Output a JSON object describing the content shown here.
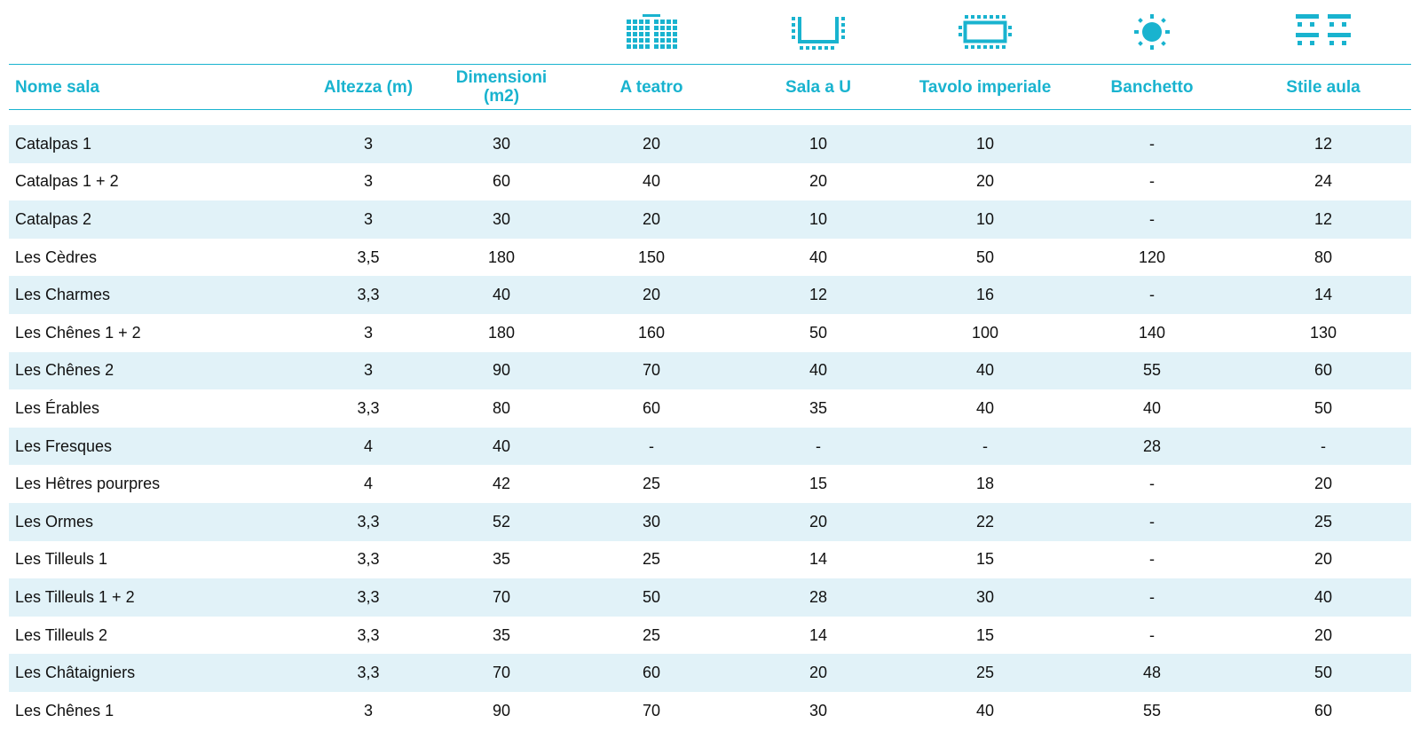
{
  "accent_color": "#19b3cf",
  "shade_color": "#e1f2f8",
  "icons": [
    {
      "column": "A teatro",
      "name": "theater-seating-icon"
    },
    {
      "column": "Sala a U",
      "name": "u-shape-seating-icon"
    },
    {
      "column": "Tavolo imperiale",
      "name": "boardroom-table-icon"
    },
    {
      "column": "Banchetto",
      "name": "banquet-round-table-icon"
    },
    {
      "column": "Stile aula",
      "name": "classroom-seating-icon"
    }
  ],
  "table": {
    "headers": [
      [
        "Nome sala"
      ],
      [
        "Altezza (m)"
      ],
      [
        "Dimensioni",
        "(m2)"
      ],
      [
        "A teatro"
      ],
      [
        "Sala a U"
      ],
      [
        "Tavolo imperiale"
      ],
      [
        "Banchetto"
      ],
      [
        "Stile aula"
      ]
    ],
    "rows": [
      [
        "Catalpas 1",
        "3",
        "30",
        "20",
        "10",
        "10",
        "-",
        "12"
      ],
      [
        "Catalpas 1 + 2",
        "3",
        "60",
        "40",
        "20",
        "20",
        "-",
        "24"
      ],
      [
        "Catalpas 2",
        "3",
        "30",
        "20",
        "10",
        "10",
        "-",
        "12"
      ],
      [
        "Les Cèdres",
        "3,5",
        "180",
        "150",
        "40",
        "50",
        "120",
        "80"
      ],
      [
        "Les Charmes",
        "3,3",
        "40",
        "20",
        "12",
        "16",
        "-",
        "14"
      ],
      [
        "Les Chênes 1 + 2",
        "3",
        "180",
        "160",
        "50",
        "100",
        "140",
        "130"
      ],
      [
        "Les Chênes 2",
        "3",
        "90",
        "70",
        "40",
        "40",
        "55",
        "60"
      ],
      [
        "Les Érables",
        "3,3",
        "80",
        "60",
        "35",
        "40",
        "40",
        "50"
      ],
      [
        "Les Fresques",
        "4",
        "40",
        "-",
        "-",
        "-",
        "28",
        "-"
      ],
      [
        "Les Hêtres pourpres",
        "4",
        "42",
        "25",
        "15",
        "18",
        "-",
        "20"
      ],
      [
        "Les Ormes",
        "3,3",
        "52",
        "30",
        "20",
        "22",
        "-",
        "25"
      ],
      [
        "Les Tilleuls 1",
        "3,3",
        "35",
        "25",
        "14",
        "15",
        "-",
        "20"
      ],
      [
        "Les Tilleuls 1 + 2",
        "3,3",
        "70",
        "50",
        "28",
        "30",
        "-",
        "40"
      ],
      [
        "Les Tilleuls 2",
        "3,3",
        "35",
        "25",
        "14",
        "15",
        "-",
        "20"
      ],
      [
        "Les Châtaigniers",
        "3,3",
        "70",
        "60",
        "20",
        "25",
        "48",
        "50"
      ],
      [
        "Les Chênes 1",
        "3",
        "90",
        "70",
        "30",
        "40",
        "55",
        "60"
      ]
    ]
  }
}
